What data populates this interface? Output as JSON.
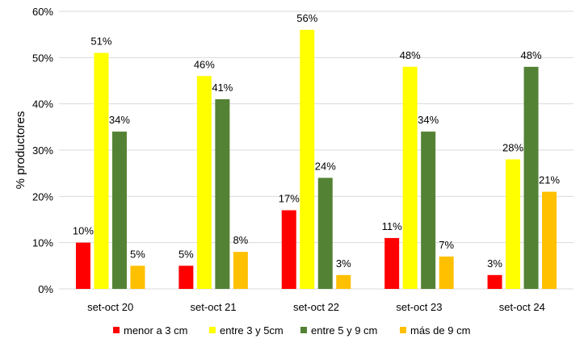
{
  "chart_data": {
    "type": "bar",
    "categories": [
      "set-oct 20",
      "set-oct 21",
      "set-oct 22",
      "set-oct 23",
      "set-oct 24"
    ],
    "series": [
      {
        "name": "menor a 3 cm",
        "color": "#ff0000",
        "values": [
          10,
          5,
          17,
          11,
          3
        ],
        "labels": [
          "10%",
          "5%",
          "17%",
          "11%",
          "3%"
        ]
      },
      {
        "name": "entre 3 y 5cm",
        "color": "#ffff00",
        "values": [
          51,
          46,
          56,
          48,
          28
        ],
        "labels": [
          "51%",
          "46%",
          "56%",
          "48%",
          "28%"
        ]
      },
      {
        "name": "entre 5 y 9 cm",
        "color": "#548235",
        "values": [
          34,
          41,
          24,
          34,
          48
        ],
        "labels": [
          "34%",
          "41%",
          "24%",
          "34%",
          "48%"
        ]
      },
      {
        "name": "más de 9 cm",
        "color": "#ffc000",
        "values": [
          5,
          8,
          3,
          7,
          21
        ],
        "labels": [
          "5%",
          "8%",
          "3%",
          "7%",
          "21%"
        ]
      }
    ],
    "ylabel": "% productores",
    "xlabel": "",
    "ylim": [
      0,
      60
    ],
    "yticks": [
      "0%",
      "10%",
      "20%",
      "30%",
      "40%",
      "50%",
      "60%"
    ],
    "grid": true,
    "legend_position": "bottom"
  }
}
